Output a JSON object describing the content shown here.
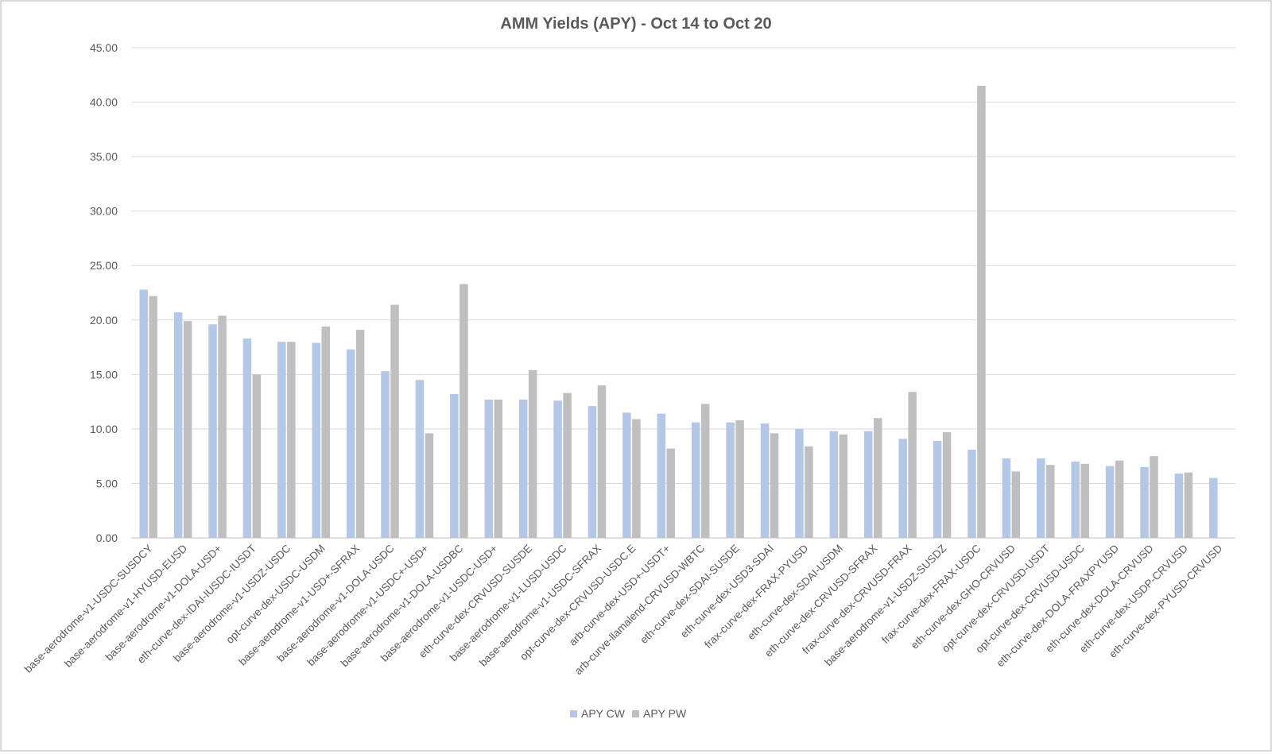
{
  "chart_data": {
    "type": "bar",
    "title": "AMM Yields (APY) - Oct 14 to Oct 20",
    "xlabel": "",
    "ylabel": "",
    "ylim": [
      0,
      45
    ],
    "yticks": [
      "0.00",
      "5.00",
      "10.00",
      "15.00",
      "20.00",
      "25.00",
      "30.00",
      "35.00",
      "40.00",
      "45.00"
    ],
    "grid": true,
    "legend_position": "bottom",
    "categories": [
      "base-aerodrome-v1-USDC-SUSDCY",
      "base-aerodrome-v1-HYUSD-EUSD",
      "base-aerodrome-v1-DOLA-USD+",
      "eth-curve-dex-IDAI-IUSDC-IUSDT",
      "base-aerodrome-v1-USDZ-USDC",
      "opt-curve-dex-USDC-USDM",
      "base-aerodrome-v1-USD+-SFRAX",
      "base-aerodrome-v1-DOLA-USDC",
      "base-aerodrome-v1-USDC+-USD+",
      "base-aerodrome-v1-DOLA-USDBC",
      "base-aerodrome-v1-USDC-USD+",
      "eth-curve-dex-CRVUSD-SUSDE",
      "base-aerodrome-v1-LUSD-USDC",
      "base-aerodrome-v1-USDC-SFRAX",
      "opt-curve-dex-CRVUSD-USDC.E",
      "arb-curve-dex-USD+-USDT+",
      "arb-curve-llamalend-CRVUSD-WBTC",
      "eth-curve-dex-SDAI-SUSDE",
      "eth-curve-dex-USD3-SDAI",
      "frax-curve-dex-FRAX-PYUSD",
      "eth-curve-dex-SDAI-USDM",
      "eth-curve-dex-CRVUSD-SFRAX",
      "frax-curve-dex-CRVUSD-FRAX",
      "base-aerodrome-v1-USDZ-SUSDZ",
      "frax-curve-dex-FRAX-USDC",
      "eth-curve-dex-GHO-CRVUSD",
      "opt-curve-dex-CRVUSD-USDT",
      "opt-curve-dex-CRVUSD-USDC",
      "eth-curve-dex-DOLA-FRAXPYUSD",
      "eth-curve-dex-DOLA-CRVUSD",
      "eth-curve-dex-USDP-CRVUSD",
      "eth-curve-dex-PYUSD-CRVUSD"
    ],
    "series": [
      {
        "name": "APY CW",
        "color": "#b4c7e7",
        "values": [
          22.8,
          20.7,
          19.6,
          18.3,
          18.0,
          17.9,
          17.3,
          15.3,
          14.5,
          13.2,
          12.7,
          12.7,
          12.6,
          12.1,
          11.5,
          11.4,
          10.6,
          10.6,
          10.5,
          10.0,
          9.8,
          9.8,
          9.1,
          8.9,
          8.1,
          7.3,
          7.3,
          7.0,
          6.6,
          6.5,
          5.9,
          5.5
        ]
      },
      {
        "name": "APY PW",
        "color": "#bfbfbf",
        "values": [
          22.2,
          19.9,
          20.4,
          15.0,
          18.0,
          19.4,
          19.1,
          21.4,
          9.6,
          23.3,
          12.7,
          15.4,
          13.3,
          14.0,
          10.9,
          8.2,
          12.3,
          10.8,
          9.6,
          8.4,
          9.5,
          11.0,
          13.4,
          9.7,
          41.5,
          6.1,
          6.7,
          6.8,
          7.1,
          7.5,
          6.0,
          null
        ]
      }
    ]
  }
}
